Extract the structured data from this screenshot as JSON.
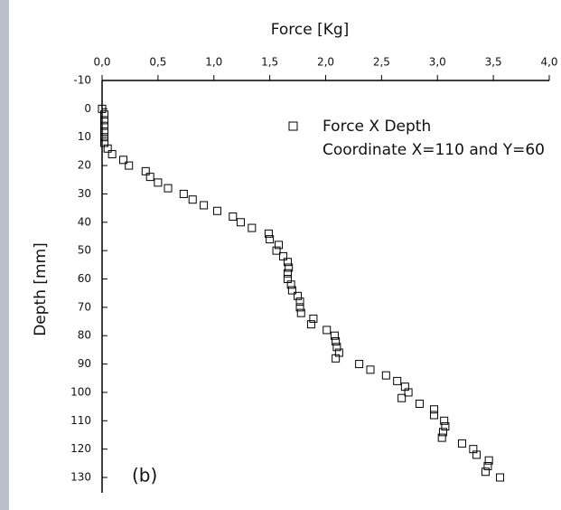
{
  "chart_data": {
    "type": "scatter",
    "xlabel": "Force [Kg]",
    "ylabel": "Depth [mm]",
    "annotation": "(b)",
    "legend_note": "Coordinate X=110 and Y=60",
    "x_axis_position": "top",
    "y_inverted": true,
    "marker": "open-square",
    "xlim": [
      0,
      4
    ],
    "xticks": [
      {
        "value": 0,
        "label": "0,0"
      },
      {
        "value": 0.5,
        "label": "0,5"
      },
      {
        "value": 1,
        "label": "1,0"
      },
      {
        "value": 1.5,
        "label": "1,5"
      },
      {
        "value": 2,
        "label": "2,0"
      },
      {
        "value": 2.5,
        "label": "2,5"
      },
      {
        "value": 3,
        "label": "3,0"
      },
      {
        "value": 3.5,
        "label": "3,5"
      },
      {
        "value": 4,
        "label": "4,0"
      }
    ],
    "ylim": [
      -10,
      130
    ],
    "yticks": [
      -10,
      0,
      10,
      20,
      30,
      40,
      50,
      60,
      70,
      80,
      90,
      100,
      110,
      120,
      130
    ],
    "series": [
      {
        "name": "Force X Depth",
        "color": "#000000",
        "x": [
          0.0,
          0.02,
          0.02,
          0.02,
          0.02,
          0.02,
          0.02,
          0.05,
          0.09,
          0.19,
          0.24,
          0.39,
          0.43,
          0.5,
          0.59,
          0.73,
          0.81,
          0.91,
          1.03,
          1.17,
          1.24,
          1.34,
          1.49,
          1.5,
          1.58,
          1.56,
          1.62,
          1.66,
          1.67,
          1.66,
          1.66,
          1.69,
          1.7,
          1.75,
          1.77,
          1.77,
          1.78,
          1.89,
          1.87,
          2.01,
          2.08,
          2.09,
          2.1,
          2.12,
          2.09,
          2.3,
          2.4,
          2.54,
          2.64,
          2.71,
          2.74,
          2.68,
          2.84,
          2.97,
          2.97,
          3.06,
          3.07,
          3.05,
          3.04,
          3.22,
          3.32,
          3.35,
          3.46,
          3.45,
          3.43,
          3.56
        ],
        "y": [
          0,
          2,
          4,
          6,
          8,
          10,
          12,
          14,
          16,
          18,
          20,
          22,
          24,
          26,
          28,
          30,
          32,
          34,
          36,
          38,
          40,
          42,
          44,
          46,
          48,
          50,
          52,
          54,
          56,
          58,
          60,
          62,
          64,
          66,
          68,
          70,
          72,
          74,
          76,
          78,
          80,
          82,
          84,
          86,
          88,
          90,
          92,
          94,
          96,
          98,
          100,
          102,
          104,
          106,
          108,
          110,
          112,
          114,
          116,
          118,
          120,
          122,
          124,
          126,
          128,
          130
        ]
      }
    ]
  }
}
